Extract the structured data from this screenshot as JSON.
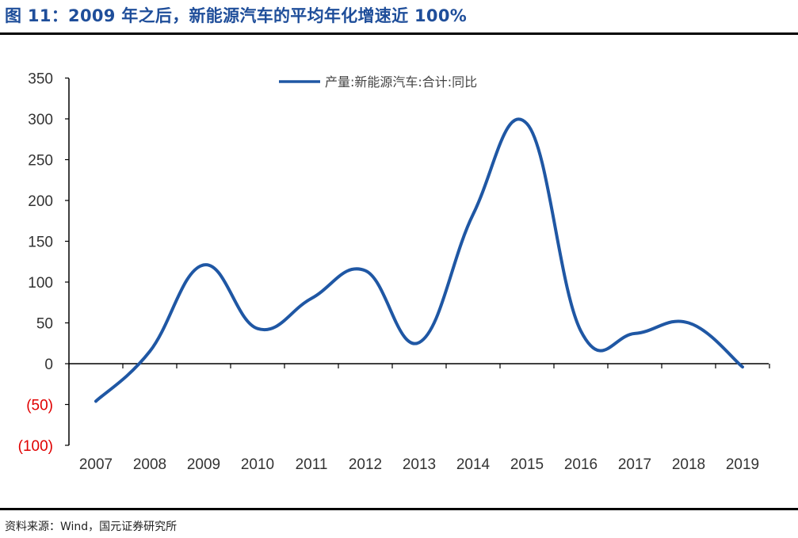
{
  "figure": {
    "title": "图 11：2009 年之后，新能源汽车的平均年化增速近 100%",
    "source": "资料来源：Wind，国元证券研究所"
  },
  "colors": {
    "title": "#1f4e9a",
    "series": "#1f57a4",
    "negative_tick": "#e00000"
  },
  "chart_data": {
    "type": "line",
    "smooth": true,
    "categories": [
      "2007",
      "2008",
      "2009",
      "2010",
      "2011",
      "2012",
      "2013",
      "2014",
      "2015",
      "2016",
      "2017",
      "2018",
      "2019"
    ],
    "series": [
      {
        "name": "产量:新能源汽车:合计:同比",
        "values": [
          -46,
          15,
          121,
          43,
          80,
          114,
          26,
          183,
          294,
          40,
          37,
          50,
          -4
        ]
      }
    ],
    "y_ticks": [
      350,
      300,
      250,
      200,
      150,
      100,
      50,
      0,
      -50,
      -100
    ],
    "y_tick_labels": [
      "350",
      "300",
      "250",
      "200",
      "150",
      "100",
      "50",
      "0",
      "(50)",
      "(100)"
    ],
    "ylim": [
      -100,
      350
    ],
    "legend_position": "top-center",
    "grid": false
  }
}
